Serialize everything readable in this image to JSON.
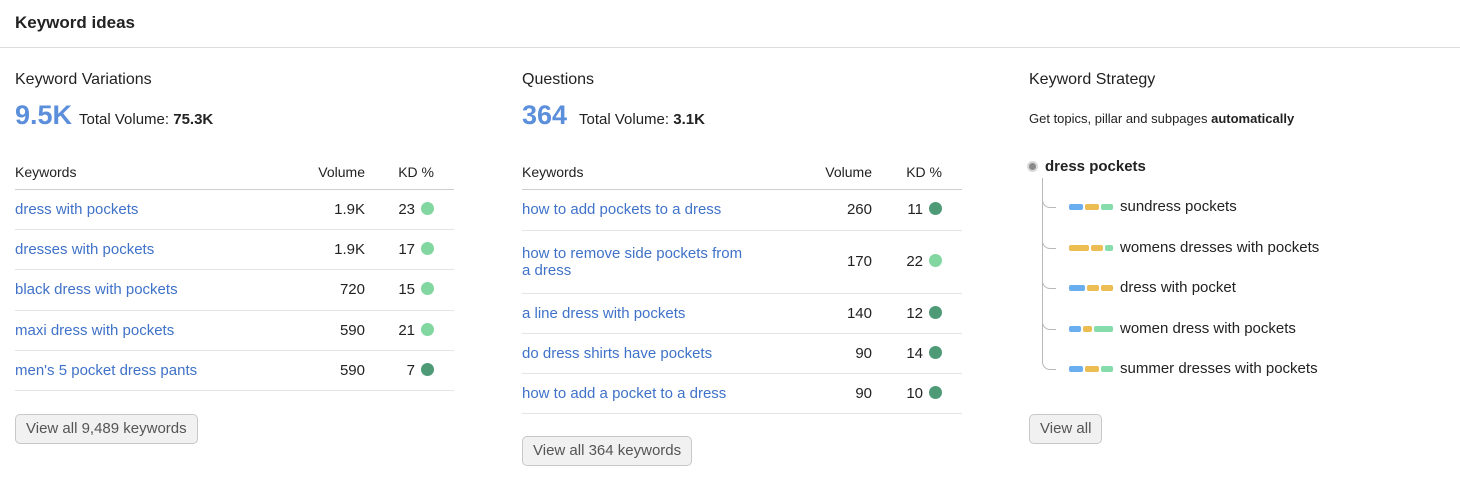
{
  "header": {
    "title": "Keyword ideas"
  },
  "colors": {
    "accent": "#5b8fdb",
    "link": "#3f72c8",
    "kd_light": "#82d6a0",
    "kd_dark": "#4e9a76",
    "bar_blue": "#6aaef0",
    "bar_yellow": "#ecbd53",
    "bar_green": "#86dcaa"
  },
  "variations": {
    "title": "Keyword Variations",
    "count": "9.5K",
    "total_label": "Total Volume:",
    "total_value": "75.3K",
    "headers": {
      "keyword": "Keywords",
      "volume": "Volume",
      "kd": "KD %"
    },
    "rows": [
      {
        "keyword": "dress with pockets",
        "volume": "1.9K",
        "kd": "23",
        "kd_level": "light"
      },
      {
        "keyword": "dresses with pockets",
        "volume": "1.9K",
        "kd": "17",
        "kd_level": "light"
      },
      {
        "keyword": "black dress with pockets",
        "volume": "720",
        "kd": "15",
        "kd_level": "light"
      },
      {
        "keyword": "maxi dress with pockets",
        "volume": "590",
        "kd": "21",
        "kd_level": "light"
      },
      {
        "keyword": "men's 5 pocket dress pants",
        "volume": "590",
        "kd": "7",
        "kd_level": "dark"
      }
    ],
    "button": "View all 9,489 keywords"
  },
  "questions": {
    "title": "Questions",
    "count": "364",
    "total_label": "Total Volume:",
    "total_value": "3.1K",
    "headers": {
      "keyword": "Keywords",
      "volume": "Volume",
      "kd": "KD %"
    },
    "rows": [
      {
        "keyword": "how to add pockets to a dress",
        "volume": "260",
        "kd": "11",
        "kd_level": "dark"
      },
      {
        "keyword": "how to remove side pockets from a dress",
        "volume": "170",
        "kd": "22",
        "kd_level": "light"
      },
      {
        "keyword": "a line dress with pockets",
        "volume": "140",
        "kd": "12",
        "kd_level": "dark"
      },
      {
        "keyword": "do dress shirts have pockets",
        "volume": "90",
        "kd": "14",
        "kd_level": "dark"
      },
      {
        "keyword": "how to add a pocket to a dress",
        "volume": "90",
        "kd": "10",
        "kd_level": "dark"
      }
    ],
    "button": "View all 364 keywords"
  },
  "strategy": {
    "title": "Keyword Strategy",
    "subtitle_prefix": "Get topics, pillar and subpages ",
    "subtitle_bold": "automatically",
    "root": "dress pockets",
    "subtopics": [
      {
        "label": "sundress pockets",
        "segments": [
          "blue",
          "yellow",
          "green"
        ]
      },
      {
        "label": "womens dresses with pockets",
        "segments": [
          "yellow",
          "yellow",
          "green"
        ]
      },
      {
        "label": "dress with pocket",
        "segments": [
          "blue",
          "yellow",
          "yellow"
        ]
      },
      {
        "label": "women dress with pockets",
        "segments": [
          "blue",
          "yellow",
          "green"
        ]
      },
      {
        "label": "summer dresses with pockets",
        "segments": [
          "blue",
          "yellow",
          "green"
        ]
      }
    ],
    "button": "View all"
  }
}
